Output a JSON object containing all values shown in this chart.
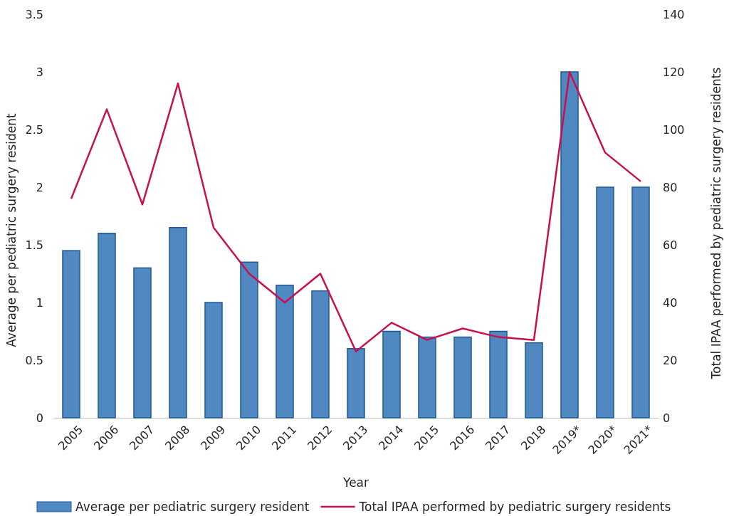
{
  "chart_data": {
    "type": "bar",
    "xlabel": "Year",
    "ylabel": "Average per pediatric surgery resident",
    "y2label": "Total IPAA performed by pediatric surgery residents",
    "categories": [
      "2005",
      "2006",
      "2007",
      "2008",
      "2009",
      "2010",
      "2011",
      "2012",
      "2013",
      "2014",
      "2015",
      "2016",
      "2017",
      "2018",
      "2019*",
      "2020*",
      "2021*"
    ],
    "series": [
      {
        "name": "Average per pediatric surgery resident",
        "color": "#5088c1",
        "values": [
          1.45,
          1.6,
          1.3,
          1.65,
          1.0,
          1.35,
          1.15,
          1.1,
          0.6,
          0.75,
          0.7,
          0.7,
          0.75,
          0.65,
          3.0,
          2.0,
          2.0
        ]
      },
      {
        "name": "Total IPAA performed by pediatric surgery residents",
        "type": "line",
        "axis": "y2",
        "color": "#c8104f",
        "values": [
          76,
          107,
          74,
          116,
          66,
          50,
          40,
          50,
          23,
          33,
          27,
          31,
          28,
          27,
          120,
          92,
          82
        ]
      }
    ],
    "ylim": [
      0,
      3.5
    ],
    "yticks": [
      0,
      0.5,
      1,
      1.5,
      2,
      2.5,
      3,
      3.5
    ],
    "y2lim": [
      0,
      140
    ],
    "y2ticks": [
      0,
      20,
      40,
      60,
      80,
      100,
      120,
      140
    ],
    "grid": false,
    "legend": "bottom",
    "marker": "none",
    "line_style": "solid"
  }
}
